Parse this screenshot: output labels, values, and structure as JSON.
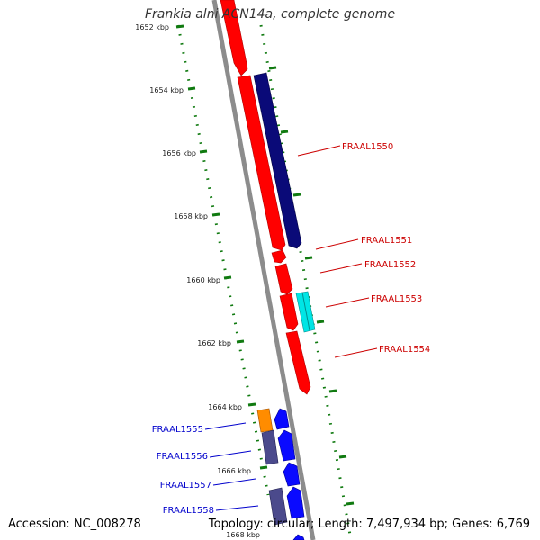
{
  "title": "Frankia alni ACN14a, complete genome",
  "footer": {
    "accession": "Accession: NC_008278",
    "summary": "Topology: circular; Length: 7,497,934 bp; Genes: 6,769"
  },
  "colors": {
    "forward_red": "#ff0000",
    "navy": "#0a0a78",
    "cyan": "#00e5e5",
    "orange": "#ff8c00",
    "slate": "#4b4a8c",
    "reverse_blue": "#0a0aff",
    "tick_green": "#107a10",
    "backbone_gray": "#8c8c8c",
    "label_red": "#cc0000",
    "label_blue": "#0000cc"
  },
  "ruler_labels": [
    "1652 kbp",
    "1654 kbp",
    "1656 kbp",
    "1658 kbp",
    "1660 kbp",
    "1662 kbp",
    "1664 kbp",
    "1666 kbp",
    "1668 kbp"
  ],
  "gene_labels": {
    "right": [
      "FRAAL1550",
      "FRAAL1551",
      "FRAAL1552",
      "FRAAL1553",
      "FRAAL1554"
    ],
    "left": [
      "FRAAL1555",
      "FRAAL1556",
      "FRAAL1557",
      "FRAAL1558"
    ]
  }
}
